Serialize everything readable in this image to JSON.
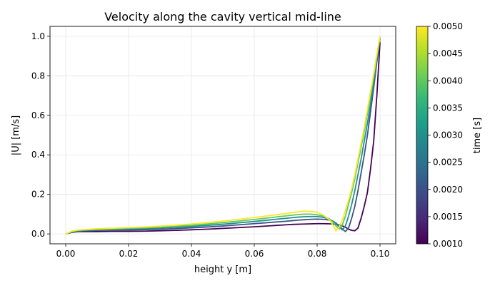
{
  "chart_data": {
    "type": "line",
    "title": "Velocity along the cavity vertical mid-line",
    "xlabel": "height  y  [m]",
    "ylabel": "|U|  [m/s]",
    "xlim": [
      -0.005,
      0.105
    ],
    "ylim": [
      -0.05,
      1.05
    ],
    "grid": true,
    "xticks": [
      "0.00",
      "0.02",
      "0.04",
      "0.06",
      "0.08",
      "0.10"
    ],
    "yticks": [
      "0.0",
      "0.2",
      "0.4",
      "0.6",
      "0.8",
      "1.0"
    ],
    "x": [
      0.0,
      0.002,
      0.004,
      0.006,
      0.008,
      0.01,
      0.015,
      0.02,
      0.025,
      0.03,
      0.035,
      0.04,
      0.045,
      0.05,
      0.055,
      0.06,
      0.065,
      0.07,
      0.072,
      0.074,
      0.076,
      0.078,
      0.08,
      0.082,
      0.084,
      0.085,
      0.086,
      0.087,
      0.088,
      0.089,
      0.09,
      0.091,
      0.092,
      0.093,
      0.094,
      0.095,
      0.096,
      0.097,
      0.098,
      0.099,
      0.1
    ],
    "series": [
      {
        "time": 0.001,
        "color": "#440154",
        "values": [
          0.0,
          0.008,
          0.012,
          0.012,
          0.012,
          0.012,
          0.013,
          0.013,
          0.014,
          0.016,
          0.018,
          0.021,
          0.024,
          0.028,
          0.032,
          0.036,
          0.041,
          0.046,
          0.048,
          0.049,
          0.05,
          0.051,
          0.052,
          0.052,
          0.051,
          0.05,
          0.048,
          0.045,
          0.041,
          0.034,
          0.024,
          0.018,
          0.016,
          0.03,
          0.08,
          0.14,
          0.21,
          0.33,
          0.47,
          0.7,
          0.97
        ]
      },
      {
        "time": 0.002,
        "color": "#3b528b",
        "values": [
          0.0,
          0.008,
          0.014,
          0.016,
          0.017,
          0.018,
          0.019,
          0.02,
          0.022,
          0.024,
          0.027,
          0.031,
          0.035,
          0.04,
          0.046,
          0.052,
          0.058,
          0.064,
          0.067,
          0.07,
          0.072,
          0.074,
          0.075,
          0.074,
          0.07,
          0.065,
          0.055,
          0.04,
          0.025,
          0.012,
          0.03,
          0.08,
          0.14,
          0.22,
          0.31,
          0.4,
          0.5,
          0.62,
          0.74,
          0.87,
          0.99
        ]
      },
      {
        "time": 0.003,
        "color": "#21918c",
        "values": [
          0.0,
          0.01,
          0.016,
          0.018,
          0.019,
          0.02,
          0.022,
          0.025,
          0.027,
          0.03,
          0.034,
          0.038,
          0.043,
          0.049,
          0.056,
          0.063,
          0.071,
          0.079,
          0.082,
          0.085,
          0.087,
          0.088,
          0.088,
          0.084,
          0.075,
          0.065,
          0.052,
          0.035,
          0.02,
          0.04,
          0.09,
          0.15,
          0.22,
          0.3,
          0.38,
          0.47,
          0.56,
          0.66,
          0.77,
          0.88,
          0.99
        ]
      },
      {
        "time": 0.004,
        "color": "#5ec962",
        "values": [
          0.0,
          0.012,
          0.018,
          0.02,
          0.022,
          0.023,
          0.026,
          0.028,
          0.031,
          0.035,
          0.039,
          0.044,
          0.05,
          0.057,
          0.065,
          0.073,
          0.082,
          0.091,
          0.095,
          0.098,
          0.1,
          0.1,
          0.097,
          0.09,
          0.075,
          0.06,
          0.04,
          0.025,
          0.045,
          0.09,
          0.15,
          0.21,
          0.28,
          0.36,
          0.44,
          0.52,
          0.61,
          0.7,
          0.8,
          0.9,
          1.0
        ]
      },
      {
        "time": 0.005,
        "color": "#fde725",
        "values": [
          0.0,
          0.014,
          0.02,
          0.022,
          0.024,
          0.026,
          0.029,
          0.032,
          0.035,
          0.039,
          0.044,
          0.05,
          0.057,
          0.065,
          0.074,
          0.083,
          0.093,
          0.103,
          0.108,
          0.112,
          0.115,
          0.114,
          0.11,
          0.095,
          0.07,
          0.045,
          0.015,
          0.035,
          0.07,
          0.12,
          0.17,
          0.23,
          0.3,
          0.38,
          0.46,
          0.54,
          0.63,
          0.72,
          0.81,
          0.91,
          1.0
        ]
      }
    ],
    "colorbar": {
      "label": "time  [s]",
      "range": [
        0.001,
        0.005
      ],
      "ticks": [
        "0.0010",
        "0.0015",
        "0.0020",
        "0.0025",
        "0.0030",
        "0.0035",
        "0.0040",
        "0.0045",
        "0.0050"
      ],
      "colormap": [
        "#440154",
        "#482878",
        "#3e4989",
        "#31688e",
        "#26828e",
        "#1f9e89",
        "#35b779",
        "#6ece58",
        "#b5de2b",
        "#fde725"
      ]
    }
  }
}
